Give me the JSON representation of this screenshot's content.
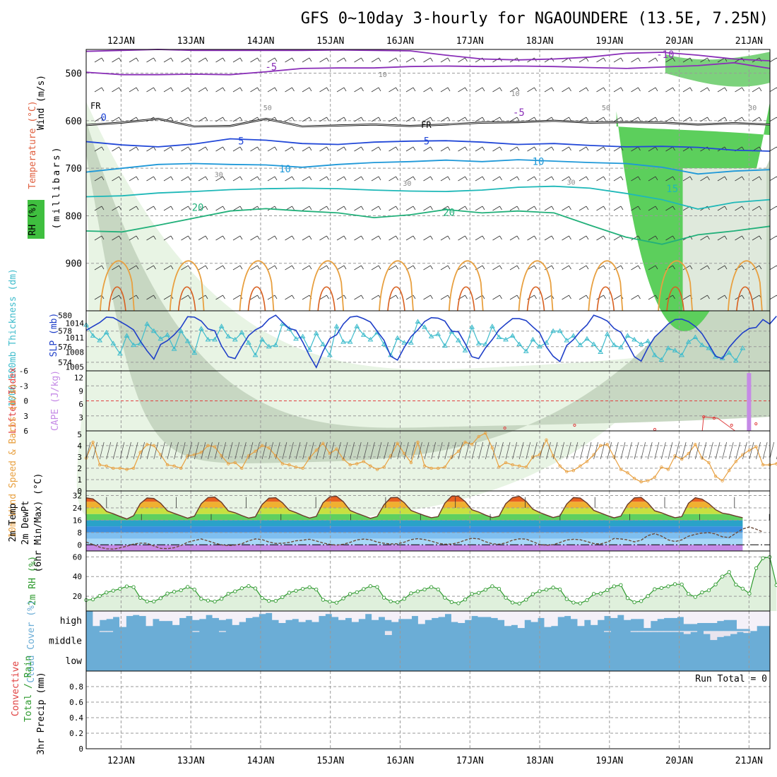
{
  "chart_data": {
    "type": "meteogram",
    "title": "GFS 0~10day 3-hourly for NGAOUNDERE (13.5E, 7.25N)",
    "dates": [
      "12JAN",
      "13JAN",
      "14JAN",
      "15JAN",
      "16JAN",
      "17JAN",
      "18JAN",
      "19JAN",
      "20JAN",
      "21JAN"
    ],
    "run_total_label": "Run Total = 0",
    "colors": {
      "frame": "#000000",
      "grid": "#9a9a9a",
      "rh_light": "#e8f4e4",
      "rh_mid": "#c7d7c2",
      "rh_green": "#5ccf5c",
      "thick": "#3fbccc",
      "slp": "#1f3fc8",
      "cape": "#c58ae6",
      "li": "#e04040",
      "wind": "#e8a040",
      "rh2m": "#2e9a2e",
      "cloud": "#6badd6"
    },
    "panels": [
      {
        "id": "upper_air",
        "ylabels": [
          "Wind (m/s)",
          "Temperature (°C)",
          "RH (%)",
          "(millibars)"
        ],
        "yticks": [
          500,
          600,
          700,
          800,
          900
        ],
        "ylim": [
          450,
          1000
        ],
        "temp_contour_labels": [
          "-10",
          "-5",
          "-5",
          "0",
          "5",
          "5",
          "10",
          "10",
          "15",
          "20",
          "20"
        ],
        "rh_contour_labels": [
          "10",
          "10",
          "30",
          "30",
          "30",
          "30",
          "50",
          "50"
        ],
        "freezing_label": "FR",
        "temperature_contours": [
          {
            "value": -10,
            "levels": [
              454,
              452,
              450,
              452,
              452,
              452,
              452,
              451,
              452,
              453,
              462,
              470,
              472,
              470,
              466,
              458,
              456,
              462,
              470,
              474
            ]
          },
          {
            "value": -5,
            "levels": [
              498,
              503,
              503,
              502,
              503,
              497,
              490,
              489,
              489,
              486,
              485,
              486,
              485,
              486,
              488,
              490,
              487,
              484,
              478,
              490
            ]
          },
          {
            "value": 5,
            "levels": [
              644,
              651,
              655,
              649,
              638,
              641,
              648,
              650,
              645,
              643,
              642,
              645,
              650,
              648,
              652,
              655,
              654,
              656,
              662,
              664
            ]
          },
          {
            "value": 10,
            "levels": [
              708,
              700,
              692,
              690,
              692,
              693,
              698,
              692,
              688,
              686,
              683,
              686,
              682,
              685,
              688,
              690,
              698,
              712,
              706,
              703
            ]
          },
          {
            "value": 15,
            "levels": [
              760,
              758,
              752,
              749,
              745,
              743,
              742,
              743,
              746,
              748,
              749,
              746,
              740,
              738,
              742,
              753,
              766,
              786,
              772,
              766
            ]
          },
          {
            "value": 20,
            "levels": [
              832,
              834,
              820,
              805,
              790,
              785,
              790,
              794,
              804,
              798,
              787,
              794,
              790,
              794,
              820,
              845,
              860,
              840,
              832,
              822
            ]
          }
        ],
        "freezing_level": [
          609,
          604,
          596,
          612,
          611,
          596,
          612,
          610,
          608,
          611,
          608,
          604,
          603,
          600,
          604,
          603,
          604,
          608,
          605,
          608
        ]
      },
      {
        "id": "thickness_slp",
        "ylabels": [
          "1000-500mb Thickness (dm)",
          "SLP (mb)"
        ],
        "thickness_ticks": [
          574,
          576,
          578,
          580
        ],
        "slp_ticks": [
          1005,
          1008,
          1011,
          1014
        ],
        "thickness": [
          578.8,
          577.4,
          576.8,
          577.8,
          576.4,
          575.1,
          577.4,
          576.2,
          576.4,
          578.9,
          578.0,
          577.0,
          577.5,
          575.7,
          578.0,
          576.7,
          575.2,
          578.3,
          576.9,
          576.9,
          578.6,
          577.3,
          576.9,
          577.8,
          576.5,
          574.9,
          576.9,
          576.0,
          576.2,
          578.9,
          578.3,
          577.0,
          577.3,
          575.6,
          577.7,
          576.3,
          574.9,
          578.6,
          576.6,
          576.6,
          578.6,
          577.5,
          576.9,
          577.8,
          576.3,
          574.9,
          577.1,
          576.5,
          576.5,
          579.2,
          578.5,
          577.3,
          577.6,
          576.1,
          577.9,
          576.8,
          575.5,
          578.5,
          576.4,
          576.3,
          578.6,
          577.2,
          576.9,
          577.4,
          576.3,
          575.4,
          576.9,
          576.0,
          576.5,
          578.0,
          578.0,
          576.8,
          577.4,
          576.2,
          577.0,
          576.3,
          575.3,
          577.6,
          576.2,
          575.9,
          577.4,
          576.9,
          576.3,
          576.7,
          574.9,
          574.3,
          575.8,
          575.5,
          574.9,
          576.6,
          577.2,
          576.2,
          575.8,
          574.7,
          574.5,
          575.2,
          574.2,
          575.8
        ],
        "slp": [
          1012.5,
          1013.3,
          1014.1,
          1015.2,
          1015.1,
          1014.3,
          1013.5,
          1012.6,
          1010.3,
          1008.3,
          1006.6,
          1009.6,
          1010.4,
          1011.6,
          1013.1,
          1015.3,
          1015.2,
          1014.4,
          1012.8,
          1012.4,
          1009.3,
          1007.1,
          1006.7,
          1009.2,
          1011.4,
          1012.6,
          1013.3,
          1014.8,
          1015.6,
          1014.2,
          1012.9,
          1012.5,
          1010.1,
          1007.3,
          1004.9,
          1008.2,
          1010.8,
          1011.6,
          1013.8,
          1015.2,
          1015.4,
          1014.9,
          1014.2,
          1012.3,
          1010.5,
          1007.2,
          1006.4,
          1009.0,
          1011.2,
          1012.6,
          1014.3,
          1015.1,
          1015.0,
          1014.4,
          1012.3,
          1012.2,
          1009.8,
          1007.1,
          1006.7,
          1008.9,
          1010.6,
          1012.6,
          1013.8,
          1014.9,
          1014.9,
          1014.5,
          1013.2,
          1012.0,
          1009.1,
          1007.2,
          1006.1,
          1009.4,
          1010.6,
          1012.3,
          1013.6,
          1015.6,
          1015.1,
          1014.4,
          1012.9,
          1012.1,
          1009.7,
          1007.1,
          1006.2,
          1008.9,
          1011.1,
          1012.4,
          1013.8,
          1014.7,
          1014.8,
          1014.3,
          1013.3,
          1011.8,
          1009.6,
          1007.2,
          1006.7,
          1009.0,
          1010.6,
          1012.0,
          1012.9,
          1013.1,
          1014.7,
          1013.8,
          1015.4
        ]
      },
      {
        "id": "li_cape",
        "ylabels": [
          "Lifted Index",
          "CAPE (J/kg)"
        ],
        "li_ticks": [
          "-6",
          "-3",
          "0",
          "3",
          "6"
        ],
        "cape_ticks": [
          3,
          6,
          9,
          12
        ],
        "cape_bar": {
          "day": 21.0,
          "value": 13
        }
      },
      {
        "id": "wind10m",
        "ylabels": [
          "10m Wind Speed & Barbs (m/s)"
        ],
        "yticks": [
          0,
          1,
          2,
          3,
          4,
          5
        ],
        "ylim": [
          0,
          5.3
        ],
        "speed": [
          2.9,
          4.3,
          2.3,
          2.2,
          2.0,
          2.0,
          1.9,
          2.0,
          3.4,
          4.1,
          4.0,
          3.2,
          2.3,
          2.2,
          2.0,
          3.1,
          3.2,
          3.4,
          4.0,
          3.9,
          3.1,
          2.4,
          2.5,
          2.0,
          3.1,
          3.5,
          4.0,
          3.8,
          3.1,
          2.4,
          2.3,
          2.1,
          2.0,
          2.9,
          3.6,
          4.2,
          3.3,
          3.7,
          2.8,
          2.3,
          2.4,
          2.6,
          2.2,
          1.9,
          2.1,
          3.1,
          4.2,
          3.3,
          2.5,
          4.3,
          2.2,
          2.0,
          2.0,
          2.1,
          3.0,
          3.5,
          4.3,
          4.1,
          4.8,
          5.1,
          3.8,
          2.1,
          2.5,
          2.3,
          2.2,
          2.1,
          3.0,
          3.2,
          4.5,
          3.1,
          2.2,
          1.7,
          1.8,
          2.2,
          2.6,
          3.2,
          4.0,
          4.1,
          3.0,
          1.9,
          1.6,
          1.1,
          0.8,
          0.9,
          1.2,
          2.1,
          1.9,
          3.1,
          2.8,
          3.3,
          4.1,
          2.9,
          2.5,
          1.3,
          0.9,
          1.8,
          2.6,
          3.2,
          3.6,
          3.9,
          2.3,
          2.3,
          2.4,
          3.3
        ]
      },
      {
        "id": "temp2m",
        "ylabels": [
          "2m Temp",
          "2m DewPt",
          "(6hr Min/Max) (°C)"
        ],
        "yticks": [
          0,
          8,
          16,
          24,
          32
        ],
        "ylim": [
          -4,
          35
        ],
        "temp": [
          30.5,
          29.8,
          26.4,
          21.7,
          20.2,
          18.4,
          16.8,
          18.9,
          26.8,
          30.4,
          30.1,
          27.0,
          22.1,
          20.4,
          18.9,
          17.3,
          18.6,
          26.7,
          30.7,
          31.0,
          27.5,
          22.0,
          20.8,
          19.0,
          17.4,
          18.2,
          26.2,
          30.3,
          30.6,
          27.3,
          22.5,
          20.9,
          19.0,
          17.4,
          18.5,
          27.3,
          31.2,
          31.5,
          28.0,
          22.3,
          20.5,
          18.9,
          17.2,
          18.4,
          26.0,
          30.6,
          30.8,
          27.4,
          22.3,
          20.6,
          19.0,
          17.6,
          18.3,
          27.0,
          31.6,
          31.6,
          28.1,
          22.8,
          21.3,
          19.3,
          17.7,
          18.6,
          26.7,
          30.7,
          31.5,
          28.3,
          23.1,
          21.0,
          19.3,
          17.7,
          18.8,
          26.5,
          30.7,
          30.4,
          27.1,
          22.4,
          20.7,
          19.0,
          17.5,
          18.6,
          26.2,
          30.5,
          30.8,
          27.2,
          22.1,
          20.8,
          19.1,
          17.6,
          18.3,
          27.0,
          30.6,
          29.7,
          26.8,
          22.8,
          20.6,
          19.8,
          18.6,
          17.6
        ],
        "dewpt": [
          1.8,
          0.2,
          -1.5,
          -2.6,
          -2.8,
          -2.0,
          -0.9,
          0.5,
          1.1,
          1.0,
          -0.8,
          -2.3,
          -2.5,
          -1.9,
          -0.5,
          1.7,
          2.8,
          3.8,
          2.5,
          1.1,
          0.0,
          -0.5,
          -0.2,
          0.7,
          2.6,
          3.8,
          3.4,
          1.8,
          0.9,
          1.0,
          1.5,
          2.6,
          3.0,
          3.6,
          2.5,
          1.2,
          0.3,
          -0.3,
          0.4,
          1.6,
          3.2,
          3.7,
          3.3,
          1.8,
          1.0,
          0.6,
          0.7,
          1.7,
          3.4,
          4.0,
          3.4,
          2.4,
          1.0,
          0.4,
          0.5,
          1.4,
          3.0,
          4.2,
          3.9,
          2.0,
          0.7,
          0.4,
          1.2,
          3.0,
          3.9,
          3.7,
          2.0,
          0.2,
          -0.3,
          0.1,
          1.5,
          3.1,
          3.6,
          3.3,
          2.1,
          0.8,
          0.6,
          1.8,
          4.1,
          3.8,
          3.2,
          1.9,
          3.0,
          6.0,
          7.3,
          5.7,
          3.2,
          2.1,
          3.2,
          5.6,
          6.8,
          7.6,
          7.9,
          7.0,
          5.2,
          4.7,
          7.5,
          10.3,
          11.6,
          10.2,
          8.3
        ]
      },
      {
        "id": "rh2m",
        "ylabels": [
          "2m RH (%)"
        ],
        "yticks": [
          20,
          40,
          60
        ],
        "ylim": [
          5,
          66
        ],
        "rh": [
          16.1,
          16.8,
          20.3,
          23.8,
          25.7,
          27.6,
          30.0,
          29.3,
          18.4,
          14.8,
          14.7,
          18.0,
          22.8,
          24.6,
          26.1,
          29.5,
          26.8,
          17.3,
          15.7,
          14.6,
          17.4,
          22.6,
          25.0,
          28.1,
          30.4,
          28.0,
          18.2,
          15.3,
          15.3,
          19.1,
          23.6,
          25.6,
          27.5,
          29.1,
          26.9,
          16.4,
          14.5,
          13.5,
          17.8,
          22.4,
          24.1,
          27.3,
          30.3,
          29.4,
          18.5,
          14.8,
          13.9,
          17.4,
          23.0,
          25.0,
          26.9,
          29.3,
          27.0,
          18.5,
          14.1,
          12.9,
          16.7,
          22.4,
          23.5,
          26.6,
          30.2,
          27.6,
          18.5,
          13.6,
          12.6,
          16.5,
          22.2,
          25.2,
          26.7,
          28.8,
          27.0,
          17.1,
          13.6,
          12.8,
          16.0,
          22.4,
          22.8,
          26.3,
          30.1,
          31.4,
          18.1,
          13.9,
          15.1,
          20.2,
          27.2,
          28.4,
          30.1,
          32.3,
          32.0,
          22.3,
          19.3,
          23.9,
          26.0,
          32.0,
          40.1,
          44.6,
          31.7,
          27.8,
          22.8,
          48.5,
          58.7,
          59.8,
          31.3
        ]
      },
      {
        "id": "cloud",
        "ylabels": [
          "Cloud Cover (%)"
        ],
        "levels": [
          "high",
          "middle",
          "low"
        ],
        "high": [
          100,
          25,
          55,
          60,
          70,
          20,
          75,
          80,
          75,
          25,
          60,
          50,
          50,
          30,
          65,
          75,
          55,
          60,
          80,
          65,
          55,
          60,
          30,
          45,
          65,
          70,
          85,
          90,
          55,
          40,
          55,
          60,
          45,
          55,
          45,
          75,
          85,
          70,
          55,
          65,
          45,
          60,
          85,
          55,
          70,
          55,
          45,
          60,
          60,
          75,
          35,
          55,
          65,
          70,
          85,
          45,
          40,
          55,
          75,
          70,
          70,
          65,
          55,
          25,
          30,
          15,
          55,
          45,
          65,
          20,
          25,
          70,
          75,
          60,
          25,
          55,
          30,
          55,
          75,
          65,
          80,
          55,
          60,
          60,
          15,
          50,
          60,
          65,
          65,
          70,
          35,
          35,
          40,
          40,
          40,
          50,
          55,
          55,
          10,
          10,
          0,
          25,
          25
        ],
        "middle": [
          0,
          0,
          5,
          5,
          0,
          0,
          0,
          0,
          0,
          0,
          0,
          0,
          0,
          0,
          0,
          0,
          5,
          0,
          0,
          0,
          5,
          0,
          0,
          0,
          0,
          0,
          0,
          0,
          0,
          0,
          0,
          0,
          0,
          0,
          0,
          0,
          0,
          0,
          0,
          0,
          0,
          0,
          0,
          0,
          0,
          20,
          0,
          0,
          0,
          0,
          0,
          0,
          0,
          0,
          0,
          0,
          0,
          0,
          0,
          0,
          0,
          0,
          0,
          0,
          0,
          0,
          0,
          0,
          0,
          0,
          0,
          0,
          0,
          0,
          0,
          0,
          0,
          0,
          5,
          0,
          0,
          0,
          5,
          5,
          5,
          5,
          5,
          5,
          5,
          5,
          15,
          5,
          0,
          15,
          45,
          30,
          25,
          15,
          5,
          10,
          0,
          0,
          0
        ],
        "low": [
          0
        ]
      },
      {
        "id": "precip",
        "ylabels": [
          "3hr Precip (mm)",
          "Total / Rain",
          "Convective"
        ],
        "yticks": [
          "0",
          "0.2",
          "0.4",
          "0.6",
          "0.8"
        ],
        "ylim": [
          0,
          1
        ]
      }
    ]
  }
}
